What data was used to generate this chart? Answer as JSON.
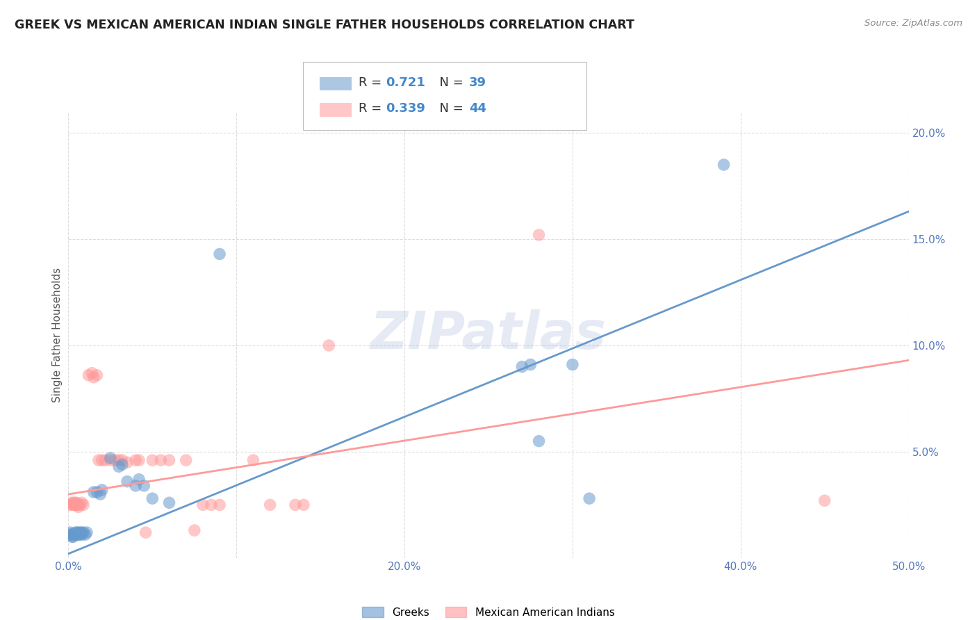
{
  "title": "GREEK VS MEXICAN AMERICAN INDIAN SINGLE FATHER HOUSEHOLDS CORRELATION CHART",
  "source": "Source: ZipAtlas.com",
  "ylabel": "Single Father Households",
  "xlim": [
    0,
    0.5
  ],
  "ylim": [
    0,
    0.21
  ],
  "xticks": [
    0.0,
    0.1,
    0.2,
    0.3,
    0.4,
    0.5
  ],
  "xticklabels": [
    "0.0%",
    "",
    "20.0%",
    "",
    "40.0%",
    "50.0%"
  ],
  "yticks": [
    0.0,
    0.05,
    0.1,
    0.15,
    0.2
  ],
  "yticklabels": [
    "",
    "5.0%",
    "10.0%",
    "15.0%",
    "20.0%"
  ],
  "blue_R": 0.721,
  "blue_N": 39,
  "pink_R": 0.339,
  "pink_N": 44,
  "blue_color": "#6699CC",
  "pink_color": "#FF9999",
  "blue_scatter": [
    [
      0.001,
      0.012
    ],
    [
      0.001,
      0.011
    ],
    [
      0.002,
      0.01
    ],
    [
      0.002,
      0.011
    ],
    [
      0.003,
      0.011
    ],
    [
      0.003,
      0.01
    ],
    [
      0.004,
      0.011
    ],
    [
      0.004,
      0.012
    ],
    [
      0.005,
      0.011
    ],
    [
      0.005,
      0.012
    ],
    [
      0.006,
      0.011
    ],
    [
      0.006,
      0.012
    ],
    [
      0.007,
      0.012
    ],
    [
      0.007,
      0.011
    ],
    [
      0.008,
      0.012
    ],
    [
      0.008,
      0.011
    ],
    [
      0.009,
      0.012
    ],
    [
      0.01,
      0.011
    ],
    [
      0.011,
      0.012
    ],
    [
      0.015,
      0.031
    ],
    [
      0.017,
      0.031
    ],
    [
      0.019,
      0.03
    ],
    [
      0.02,
      0.032
    ],
    [
      0.025,
      0.047
    ],
    [
      0.03,
      0.043
    ],
    [
      0.032,
      0.044
    ],
    [
      0.035,
      0.036
    ],
    [
      0.04,
      0.034
    ],
    [
      0.042,
      0.037
    ],
    [
      0.045,
      0.034
    ],
    [
      0.05,
      0.028
    ],
    [
      0.06,
      0.026
    ],
    [
      0.09,
      0.143
    ],
    [
      0.27,
      0.09
    ],
    [
      0.275,
      0.091
    ],
    [
      0.28,
      0.055
    ],
    [
      0.3,
      0.091
    ],
    [
      0.31,
      0.028
    ],
    [
      0.39,
      0.185
    ]
  ],
  "pink_scatter": [
    [
      0.001,
      0.025
    ],
    [
      0.002,
      0.025
    ],
    [
      0.002,
      0.026
    ],
    [
      0.003,
      0.025
    ],
    [
      0.003,
      0.026
    ],
    [
      0.004,
      0.025
    ],
    [
      0.004,
      0.026
    ],
    [
      0.005,
      0.025
    ],
    [
      0.005,
      0.026
    ],
    [
      0.006,
      0.025
    ],
    [
      0.006,
      0.024
    ],
    [
      0.007,
      0.025
    ],
    [
      0.008,
      0.026
    ],
    [
      0.009,
      0.025
    ],
    [
      0.012,
      0.086
    ],
    [
      0.014,
      0.087
    ],
    [
      0.015,
      0.085
    ],
    [
      0.017,
      0.086
    ],
    [
      0.018,
      0.046
    ],
    [
      0.02,
      0.046
    ],
    [
      0.022,
      0.046
    ],
    [
      0.025,
      0.046
    ],
    [
      0.028,
      0.046
    ],
    [
      0.03,
      0.046
    ],
    [
      0.032,
      0.046
    ],
    [
      0.035,
      0.045
    ],
    [
      0.04,
      0.046
    ],
    [
      0.042,
      0.046
    ],
    [
      0.05,
      0.046
    ],
    [
      0.055,
      0.046
    ],
    [
      0.06,
      0.046
    ],
    [
      0.07,
      0.046
    ],
    [
      0.08,
      0.025
    ],
    [
      0.085,
      0.025
    ],
    [
      0.09,
      0.025
    ],
    [
      0.11,
      0.046
    ],
    [
      0.12,
      0.025
    ],
    [
      0.135,
      0.025
    ],
    [
      0.14,
      0.025
    ],
    [
      0.155,
      0.1
    ],
    [
      0.28,
      0.152
    ],
    [
      0.45,
      0.027
    ],
    [
      0.046,
      0.012
    ],
    [
      0.075,
      0.013
    ]
  ],
  "blue_line_x": [
    0.0,
    0.5
  ],
  "blue_line_y": [
    0.002,
    0.163
  ],
  "pink_line_x": [
    0.0,
    0.5
  ],
  "pink_line_y": [
    0.03,
    0.093
  ],
  "watermark": "ZIPatlas",
  "background_color": "#FFFFFF",
  "grid_color": "#DDDDDD",
  "legend_R_label_color": "#333333",
  "legend_value_color_blue": "#4488CC",
  "legend_value_color_pink": "#FF6688"
}
